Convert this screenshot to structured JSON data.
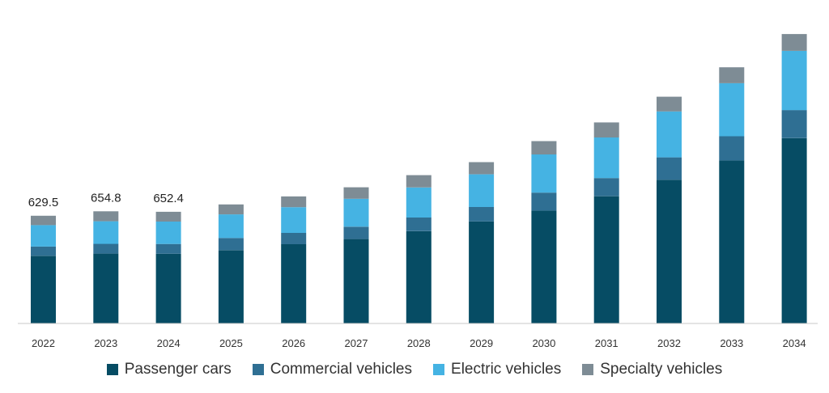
{
  "chart_data": {
    "type": "bar",
    "stacked": true,
    "title": "",
    "xlabel": "",
    "ylabel": "",
    "ylim": [
      0,
      1700
    ],
    "grid": false,
    "legend_position": "bottom",
    "categories": [
      "2022",
      "2023",
      "2024",
      "2025",
      "2026",
      "2027",
      "2028",
      "2029",
      "2030",
      "2031",
      "2032",
      "2033",
      "2034"
    ],
    "series": [
      {
        "name": "Passenger cars",
        "color": "#064c64",
        "values": [
          395,
          408,
          407,
          428,
          463,
          493,
          539,
          596,
          659,
          743,
          839,
          952,
          1082
        ]
      },
      {
        "name": "Commercial vehicles",
        "color": "#2f6f93",
        "values": [
          54,
          57,
          57,
          71,
          66,
          72,
          80,
          84,
          105,
          106,
          131,
          141,
          164
        ]
      },
      {
        "name": "Electric vehicles",
        "color": "#45b3e3",
        "values": [
          125,
          132,
          131,
          138,
          150,
          163,
          175,
          191,
          223,
          237,
          268,
          310,
          346
        ]
      },
      {
        "name": "Specialty vehicles",
        "color": "#7e8c95",
        "values": [
          55,
          58,
          57,
          58,
          63,
          67,
          72,
          71,
          78,
          88,
          86,
          93,
          98
        ]
      }
    ],
    "data_labels": [
      {
        "category": "2022",
        "text": "629.5"
      },
      {
        "category": "2023",
        "text": "654.8"
      },
      {
        "category": "2024",
        "text": "652.4"
      }
    ]
  }
}
